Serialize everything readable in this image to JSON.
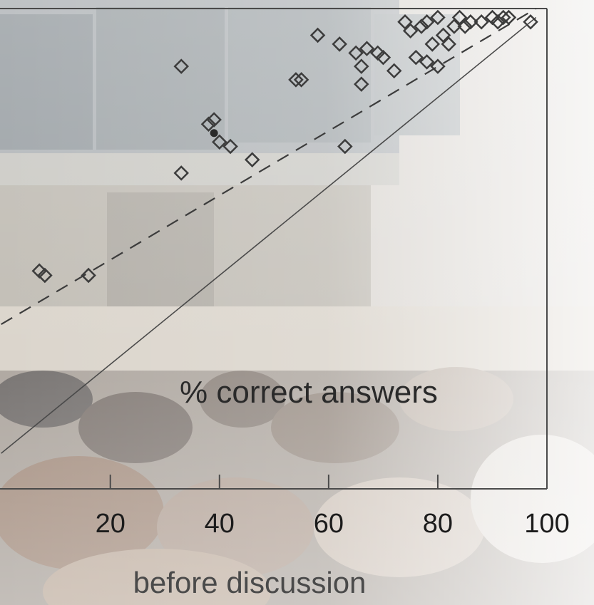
{
  "chart_data": {
    "type": "scatter",
    "title": "",
    "inner_label": "% correct answers",
    "xlabel": "before discussion",
    "ylabel": "",
    "xlim": [
      -1,
      100
    ],
    "ylim": [
      -8,
      100
    ],
    "xticks": [
      20,
      40,
      60,
      80,
      100
    ],
    "xtick_labels": [
      "20",
      "40",
      "60",
      "80",
      "100"
    ],
    "grid": false,
    "legend": "none",
    "marker": "open-diamond",
    "points": [
      [
        7,
        41
      ],
      [
        8,
        40
      ],
      [
        16,
        40
      ],
      [
        33,
        63
      ],
      [
        38,
        74
      ],
      [
        39,
        75
      ],
      [
        40,
        70
      ],
      [
        42,
        69
      ],
      [
        46,
        66
      ],
      [
        33,
        87
      ],
      [
        54,
        84
      ],
      [
        55,
        84
      ],
      [
        63,
        69
      ],
      [
        58,
        94
      ],
      [
        62,
        92
      ],
      [
        65,
        90
      ],
      [
        66,
        87
      ],
      [
        66,
        83
      ],
      [
        67,
        91
      ],
      [
        69,
        90
      ],
      [
        70,
        89
      ],
      [
        72,
        86
      ],
      [
        74,
        97
      ],
      [
        75,
        95
      ],
      [
        77,
        96
      ],
      [
        78,
        97
      ],
      [
        80,
        98
      ],
      [
        79,
        92
      ],
      [
        81,
        94
      ],
      [
        82,
        92
      ],
      [
        83,
        96
      ],
      [
        76,
        89
      ],
      [
        78,
        88
      ],
      [
        80,
        87
      ],
      [
        84,
        98
      ],
      [
        85,
        96
      ],
      [
        86,
        97
      ],
      [
        88,
        97
      ],
      [
        90,
        98
      ],
      [
        91,
        97
      ],
      [
        92,
        98
      ],
      [
        93,
        98
      ],
      [
        97,
        97
      ]
    ],
    "mean_point": [
      39,
      72
    ],
    "reference_line": {
      "style": "solid",
      "from": [
        0,
        0
      ],
      "to": [
        98,
        98
      ]
    },
    "fit_line": {
      "style": "dashed",
      "from": [
        0,
        29
      ],
      "to": [
        98,
        100
      ]
    }
  },
  "colors": {
    "marker": "#3c3c3c",
    "axis": "#4a4a4a",
    "tick_text": "#1c1c1c",
    "title_text": "#4a4a4a"
  }
}
